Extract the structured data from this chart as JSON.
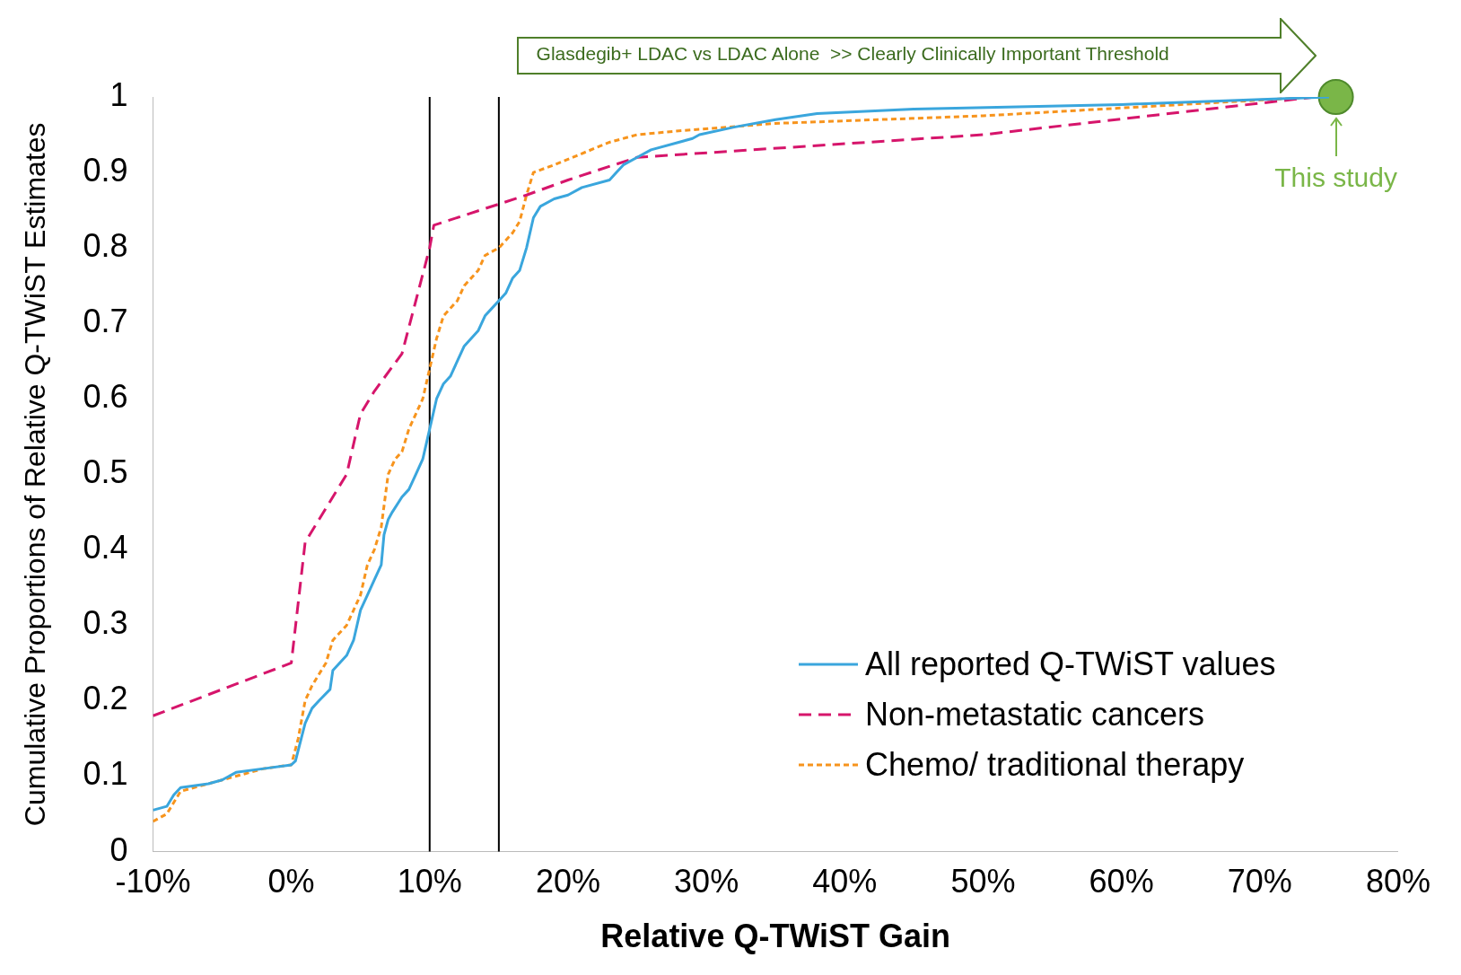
{
  "chart_data": {
    "type": "line",
    "xlabel": "Relative Q-TWiST Gain",
    "ylabel": "Cumulative Proportions of Relative Q-TWiST Estimates",
    "xlim": [
      -10,
      80
    ],
    "xticks": [
      {
        "value": -10,
        "label": "-10%"
      },
      {
        "value": 0,
        "label": "0%"
      },
      {
        "value": 10,
        "label": "10%"
      },
      {
        "value": 20,
        "label": "20%"
      },
      {
        "value": 30,
        "label": "30%"
      },
      {
        "value": 40,
        "label": "40%"
      },
      {
        "value": 50,
        "label": "50%"
      },
      {
        "value": 60,
        "label": "60%"
      },
      {
        "value": 70,
        "label": "70%"
      },
      {
        "value": 80,
        "label": "80%"
      }
    ],
    "ylim": [
      0,
      1
    ],
    "yticks": [
      0,
      0.1,
      0.2,
      0.3,
      0.4,
      0.5,
      0.6,
      0.7,
      0.8,
      0.9,
      1
    ],
    "grid": false,
    "legend": "bottom right",
    "marker": "none",
    "series": [
      {
        "name": "All reported Q-TWiST values",
        "color": "#3aa6dd",
        "line_style": "solid",
        "x": [
          -10,
          -9,
          -8.5,
          -8,
          -6,
          -5,
          -4,
          -2,
          0,
          0.3,
          1,
          1.5,
          2,
          2.8,
          3,
          4,
          4.5,
          5,
          5.5,
          6,
          6.5,
          6.7,
          7,
          7.3,
          8,
          8.5,
          9,
          9.5,
          10,
          10.5,
          11,
          11.5,
          12,
          12.5,
          13,
          13.5,
          14,
          14.5,
          15,
          15.5,
          16,
          16.5,
          17,
          17.5,
          18,
          19,
          20,
          21,
          23,
          23.5,
          24,
          25,
          26,
          28,
          29,
          29.5,
          32,
          35,
          38,
          45,
          60,
          75
        ],
        "values": [
          0.055,
          0.06,
          0.075,
          0.085,
          0.09,
          0.095,
          0.105,
          0.11,
          0.115,
          0.12,
          0.17,
          0.19,
          0.2,
          0.215,
          0.24,
          0.26,
          0.28,
          0.32,
          0.34,
          0.36,
          0.38,
          0.42,
          0.44,
          0.45,
          0.47,
          0.48,
          0.5,
          0.52,
          0.56,
          0.6,
          0.62,
          0.63,
          0.65,
          0.67,
          0.68,
          0.69,
          0.71,
          0.72,
          0.73,
          0.74,
          0.76,
          0.77,
          0.8,
          0.84,
          0.855,
          0.865,
          0.87,
          0.88,
          0.89,
          0.9,
          0.91,
          0.92,
          0.93,
          0.94,
          0.945,
          0.95,
          0.96,
          0.97,
          0.978,
          0.984,
          0.99,
          1
        ]
      },
      {
        "name": "Non-metastatic cancers",
        "color": "#d6156b",
        "line_style": "dashed",
        "x": [
          -10,
          0,
          1,
          2,
          4,
          5,
          6,
          8,
          10,
          10.3,
          17,
          20,
          25,
          50,
          74
        ],
        "values": [
          0.18,
          0.25,
          0.41,
          0.44,
          0.5,
          0.58,
          0.61,
          0.66,
          0.8,
          0.83,
          0.87,
          0.89,
          0.92,
          0.95,
          1
        ]
      },
      {
        "name": "Chemo/ traditional therapy",
        "color": "#f7941d",
        "line_style": "dotted",
        "x": [
          -10,
          -9,
          -8,
          -6,
          -4,
          -2,
          0,
          0.5,
          1,
          1.5,
          2.5,
          3,
          4,
          5,
          5.5,
          6,
          6.5,
          7,
          7.5,
          8,
          8.5,
          9,
          9.5,
          10,
          10.5,
          11,
          12,
          12.5,
          13.5,
          14,
          15,
          16,
          16.5,
          17,
          17.5,
          19,
          21,
          23,
          25,
          28,
          35,
          50,
          74
        ],
        "values": [
          0.04,
          0.05,
          0.08,
          0.09,
          0.1,
          0.11,
          0.115,
          0.15,
          0.2,
          0.22,
          0.25,
          0.28,
          0.3,
          0.34,
          0.38,
          0.4,
          0.43,
          0.5,
          0.52,
          0.53,
          0.56,
          0.58,
          0.6,
          0.64,
          0.68,
          0.71,
          0.73,
          0.75,
          0.77,
          0.79,
          0.8,
          0.82,
          0.835,
          0.87,
          0.9,
          0.91,
          0.925,
          0.94,
          0.95,
          0.955,
          0.965,
          0.975,
          1
        ]
      },
      {
        "name": "This study",
        "type": "scatter",
        "marker": "circle",
        "color": "#7ab648",
        "x": [
          75.5
        ],
        "values": [
          1
        ]
      }
    ],
    "ref_lines": [
      {
        "axis": "x",
        "value": 10,
        "color": "#000000"
      },
      {
        "axis": "x",
        "value": 15,
        "color": "#000000"
      }
    ],
    "annotations": [
      "Glasdegib+ LDAC vs LDAC Alone  >> Clearly Clinically Important Threshold"
    ]
  }
}
